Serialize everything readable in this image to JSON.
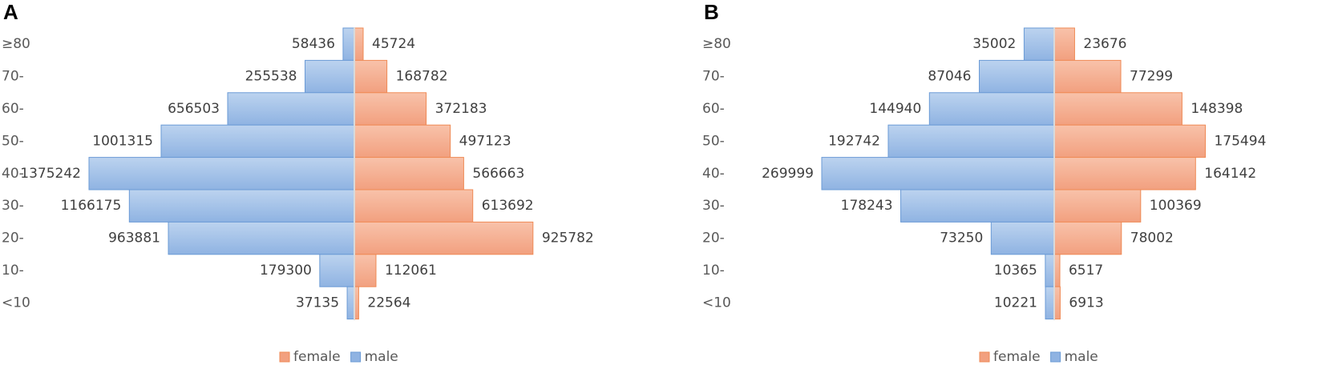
{
  "chart_data": [
    {
      "type": "bar",
      "orientation": "horizontal",
      "panel_label": "A",
      "categories": [
        "≥80",
        "70-",
        "60-",
        "50-",
        "40-",
        "30-",
        "20-",
        "10-",
        "<10"
      ],
      "series": [
        {
          "name": "male",
          "values": [
            58436,
            255538,
            656503,
            1001315,
            1375242,
            1166175,
            963881,
            179300,
            37135
          ]
        },
        {
          "name": "female",
          "values": [
            45724,
            168782,
            372183,
            497123,
            566663,
            613692,
            925782,
            112061,
            22564
          ]
        }
      ],
      "xlim": [
        -1375242,
        1375242
      ],
      "grid": false,
      "legend": {
        "position": "bottom",
        "entries": [
          "female",
          "male"
        ]
      }
    },
    {
      "type": "bar",
      "orientation": "horizontal",
      "panel_label": "B",
      "categories": [
        "≥80",
        "70-",
        "60-",
        "50-",
        "40-",
        "30-",
        "20-",
        "10-",
        "<10"
      ],
      "series": [
        {
          "name": "male",
          "values": [
            35002,
            87046,
            144940,
            192742,
            269999,
            178243,
            73250,
            10365,
            10221
          ]
        },
        {
          "name": "female",
          "values": [
            23676,
            77299,
            148398,
            175494,
            164142,
            100369,
            78002,
            6517,
            6913
          ]
        }
      ],
      "xlim": [
        -269999,
        269999
      ],
      "grid": false,
      "legend": {
        "position": "bottom",
        "entries": [
          "female",
          "male"
        ]
      }
    }
  ],
  "colors": {
    "male_fill_light": "#bcd3ef",
    "male_fill_dark": "#8fb3e2",
    "male_stroke": "#6b9bd6",
    "female_fill_light": "#f8c2aa",
    "female_fill_dark": "#f2a07f",
    "female_stroke": "#ef8a55",
    "center_line": "#d9d9d9"
  }
}
